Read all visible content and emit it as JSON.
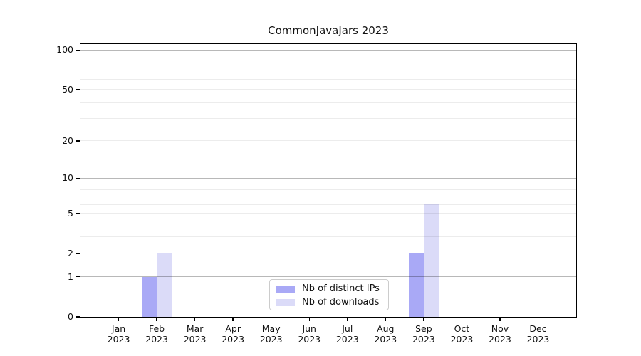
{
  "chart_data": {
    "type": "bar",
    "title": "CommonJavaJars 2023",
    "categories": [
      "Jan 2023",
      "Feb 2023",
      "Mar 2023",
      "Apr 2023",
      "May 2023",
      "Jun 2023",
      "Jul 2023",
      "Aug 2023",
      "Sep 2023",
      "Oct 2023",
      "Nov 2023",
      "Dec 2023"
    ],
    "series": [
      {
        "name": "Nb of distinct IPs",
        "color": "#a9a9f6",
        "values": [
          0,
          1,
          0,
          0,
          0,
          0,
          0,
          0,
          2,
          0,
          0,
          0
        ]
      },
      {
        "name": "Nb of downloads",
        "color": "#dbdbf8",
        "values": [
          0,
          2,
          0,
          0,
          0,
          0,
          0,
          0,
          6,
          0,
          0,
          0
        ]
      }
    ],
    "xlabel": "",
    "ylabel": "",
    "yscale": "log1p",
    "ylim": [
      0,
      111
    ],
    "yticks": [
      0,
      1,
      2,
      5,
      10,
      20,
      50,
      100
    ],
    "major_gridlines": [
      1,
      10,
      100
    ],
    "minor_gridlines": [
      2,
      3,
      4,
      5,
      6,
      7,
      8,
      9,
      20,
      30,
      40,
      50,
      60,
      70,
      80,
      90
    ],
    "grid": true,
    "legend_position": "bottom-center"
  },
  "colors": {
    "grid_major": "#b8b8b8",
    "grid_minor": "#ebebeb",
    "axis": "#000000",
    "background": "#ffffff"
  }
}
